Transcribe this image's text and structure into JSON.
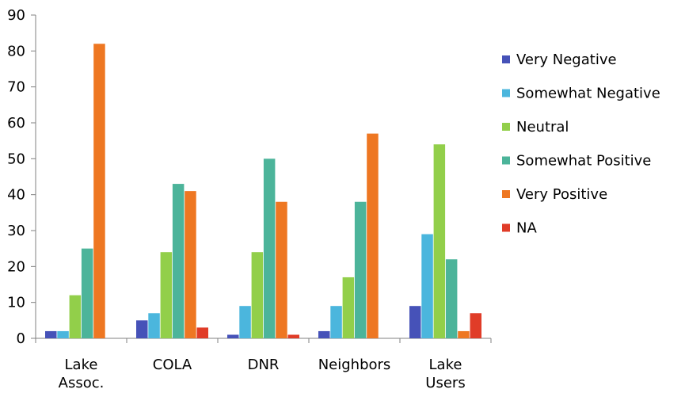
{
  "chart_data": {
    "type": "bar",
    "categories": [
      [
        "Lake",
        "Assoc."
      ],
      [
        "COLA"
      ],
      [
        "DNR"
      ],
      [
        "Neighbors"
      ],
      [
        "Lake",
        "Users"
      ]
    ],
    "series": [
      {
        "name": "Very Negative",
        "color": "#4652b8",
        "values": [
          2,
          5,
          1,
          2,
          9
        ]
      },
      {
        "name": "Somewhat Negative",
        "color": "#4bb6dd",
        "values": [
          2,
          7,
          9,
          9,
          29
        ]
      },
      {
        "name": "Neutral",
        "color": "#92cf4a",
        "values": [
          12,
          24,
          24,
          17,
          54
        ]
      },
      {
        "name": "Somewhat Positive",
        "color": "#4cb49a",
        "values": [
          25,
          43,
          50,
          38,
          22
        ]
      },
      {
        "name": "Very Positive",
        "color": "#ee7722",
        "values": [
          82,
          41,
          38,
          57,
          2
        ]
      },
      {
        "name": "NA",
        "color": "#e03c28",
        "values": [
          0,
          3,
          1,
          0,
          7
        ]
      }
    ],
    "ylim": [
      0,
      90
    ],
    "yticks": [
      0,
      10,
      20,
      30,
      40,
      50,
      60,
      70,
      80,
      90
    ],
    "grid": false,
    "legend": "right",
    "title": "",
    "xlabel": "",
    "ylabel": ""
  }
}
